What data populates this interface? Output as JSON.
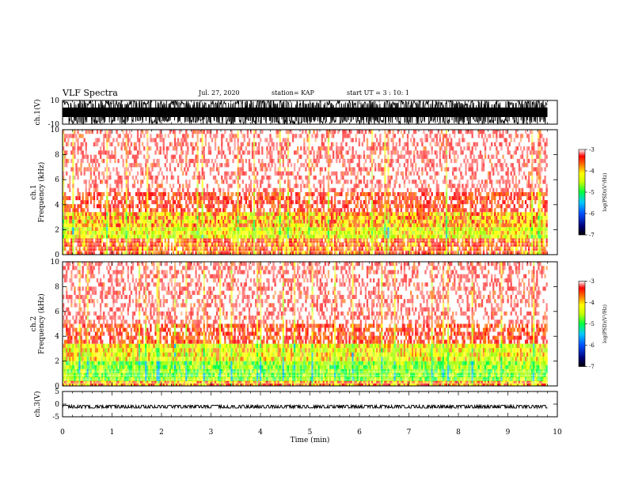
{
  "header": {
    "title": "VLF Spectra",
    "date": "Jul. 27, 2020",
    "station": "station= KAP",
    "start": "start UT =  3 : 10: 1"
  },
  "chart_data": [
    {
      "type": "line",
      "panel": "ch1-waveform",
      "ylabel": "ch.1(V)",
      "ylim": [
        -10,
        10
      ],
      "yticks": [
        "10",
        "-10"
      ],
      "xlim": [
        0,
        10
      ],
      "note_data": "dense saturated waveform, values spanning about -10 to 10 V up to ~9.8 min"
    },
    {
      "type": "heatmap",
      "panel": "ch1-spectrogram",
      "ylabel": "ch.1\nFrequency (kHz)",
      "ylim": [
        0,
        10
      ],
      "yticks": [
        "0",
        "2",
        "4",
        "6",
        "8",
        "10"
      ],
      "xlim": [
        0,
        10
      ],
      "data_extent_min": 9.8,
      "bands": [
        {
          "f_from": 0,
          "f_to": 1.3,
          "level": -3.6
        },
        {
          "f_from": 1.3,
          "f_to": 2.2,
          "level": -4.2
        },
        {
          "f_from": 2.2,
          "f_to": 3.4,
          "level": -3.9
        },
        {
          "f_from": 3.4,
          "f_to": 5.0,
          "level": -3.4
        },
        {
          "f_from": 5.0,
          "f_to": 10.0,
          "level": -3.2
        }
      ],
      "colorbar": {
        "label": "log(PSD)(V²/Hz)",
        "range": [
          -7,
          -3
        ],
        "ticks": [
          "-3",
          "-4",
          "-5",
          "-6",
          "-7"
        ]
      }
    },
    {
      "type": "heatmap",
      "panel": "ch2-spectrogram",
      "ylabel": "ch.2\nFrequency (kHz)",
      "ylim": [
        0,
        10
      ],
      "yticks": [
        "0",
        "2",
        "4",
        "6",
        "8",
        "10"
      ],
      "xlim": [
        0,
        10
      ],
      "data_extent_min": 9.8,
      "bands": [
        {
          "f_from": 0,
          "f_to": 0.4,
          "level": -3.8
        },
        {
          "f_from": 0.4,
          "f_to": 2.0,
          "level": -4.6
        },
        {
          "f_from": 2.0,
          "f_to": 3.4,
          "level": -4.1
        },
        {
          "f_from": 3.4,
          "f_to": 5.0,
          "level": -3.4
        },
        {
          "f_from": 5.0,
          "f_to": 10.0,
          "level": -3.2
        }
      ],
      "colorbar": {
        "label": "log(PSD)(V²/Hz)",
        "range": [
          -7,
          -3
        ],
        "ticks": [
          "-3",
          "-4",
          "-5",
          "-6",
          "-7"
        ]
      }
    },
    {
      "type": "line",
      "panel": "ch3-waveform",
      "ylabel": "ch.3(V)",
      "ylim": [
        -5,
        5
      ],
      "yticks": [
        "5",
        "0",
        "-5"
      ],
      "xlim": [
        0,
        10
      ],
      "note_data": "narrow band near -1 V up to ~9.8 min"
    }
  ],
  "xaxis": {
    "label": "Time (min)",
    "ticks": [
      "0",
      "1",
      "2",
      "3",
      "4",
      "5",
      "6",
      "7",
      "8",
      "9",
      "10"
    ]
  },
  "colors": {
    "background": "#ffffff",
    "spectral_high": "#ff0000",
    "spectral_mid": "#ffff00",
    "spectral_low": "#00ff00"
  }
}
